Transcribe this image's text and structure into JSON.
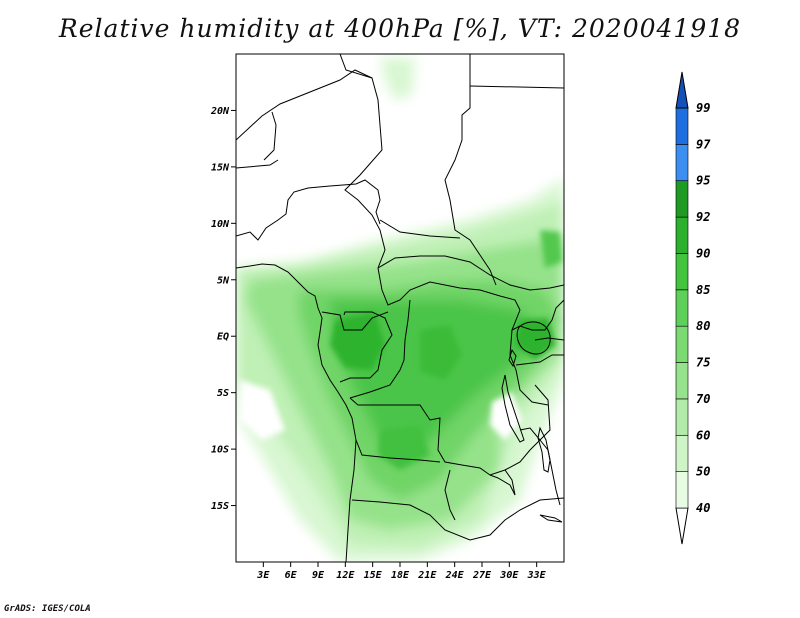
{
  "title": "Relative humidity at 400hPa [%], VT: 2020041918",
  "credit": "GrADS: IGES/COLA",
  "map": {
    "lon_range": [
      0,
      36
    ],
    "lat_range": [
      -20,
      25
    ],
    "lat_ticks": [
      {
        "value": 20,
        "label": "20N"
      },
      {
        "value": 15,
        "label": "15N"
      },
      {
        "value": 10,
        "label": "10N"
      },
      {
        "value": 5,
        "label": "5N"
      },
      {
        "value": 0,
        "label": "EQ"
      },
      {
        "value": -5,
        "label": "5S"
      },
      {
        "value": -10,
        "label": "10S"
      },
      {
        "value": -15,
        "label": "15S"
      }
    ],
    "lon_ticks": [
      {
        "value": 3,
        "label": "3E"
      },
      {
        "value": 6,
        "label": "6E"
      },
      {
        "value": 9,
        "label": "9E"
      },
      {
        "value": 12,
        "label": "12E"
      },
      {
        "value": 15,
        "label": "15E"
      },
      {
        "value": 18,
        "label": "18E"
      },
      {
        "value": 21,
        "label": "21E"
      },
      {
        "value": 24,
        "label": "24E"
      },
      {
        "value": 27,
        "label": "27E"
      },
      {
        "value": 30,
        "label": "30E"
      },
      {
        "value": 33,
        "label": "33E"
      }
    ]
  },
  "colorbar": {
    "levels": [
      "40",
      "50",
      "60",
      "70",
      "75",
      "80",
      "85",
      "90",
      "92",
      "95",
      "97",
      "99"
    ],
    "colors": [
      "#e8fbe3",
      "#cff4c8",
      "#b3ecaa",
      "#97e38d",
      "#7bda72",
      "#5ecf58",
      "#42c43f",
      "#2db02e",
      "#1f9a22",
      "#3c8ef0",
      "#1f6ee0",
      "#1550b8"
    ]
  }
}
